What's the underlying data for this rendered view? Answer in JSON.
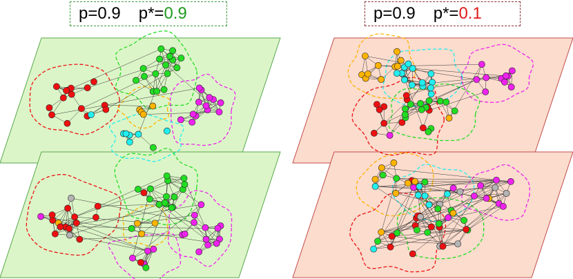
{
  "panels": [
    {
      "p_label": "p=0.9",
      "pstar_prefix": "p*=",
      "pstar_value": "0.9",
      "value_color": "#1f9a1f",
      "plane_fill": "#dcf5c8",
      "plane_stroke": "#57a84a"
    },
    {
      "p_label": "p=0.9",
      "pstar_prefix": "p*=",
      "pstar_value": "0.1",
      "value_color": "#e01b1b",
      "plane_fill": "#fbdccd",
      "plane_stroke": "#c44a4a"
    }
  ],
  "community_colors": {
    "red": "#ee1010",
    "green": "#22dd22",
    "magenta": "#ee22ee",
    "cyan": "#22eeee",
    "orange": "#ffb400",
    "gray": "#b4b4b4"
  }
}
